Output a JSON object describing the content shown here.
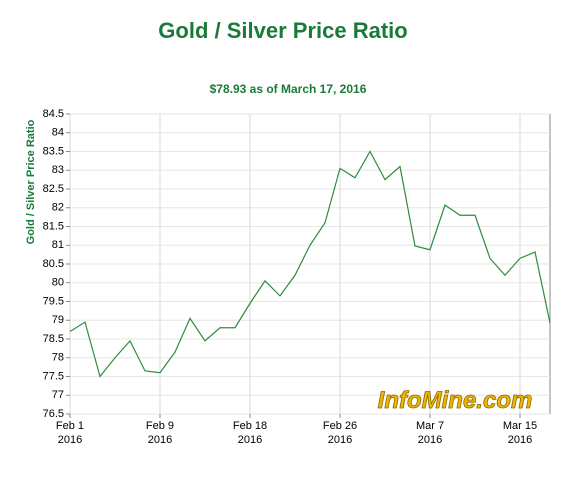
{
  "chart_data": {
    "type": "line",
    "title": "Gold / Silver Price Ratio",
    "subtitle": "$78.93 as of March 17, 2016",
    "y_label": "Gold / Silver Price Ratio",
    "watermark": "InfoMine.com",
    "categories": [
      [
        "Feb 1",
        "2016"
      ],
      null,
      null,
      null,
      null,
      null,
      [
        "Feb 9",
        "2016"
      ],
      null,
      null,
      null,
      null,
      null,
      [
        "Feb 18",
        "2016"
      ],
      null,
      null,
      null,
      null,
      null,
      [
        "Feb 26",
        "2016"
      ],
      null,
      null,
      null,
      null,
      null,
      [
        "Mar 7",
        "2016"
      ],
      null,
      null,
      null,
      null,
      null,
      [
        "Mar 15",
        "2016"
      ],
      null,
      null
    ],
    "series": [
      {
        "name": "Gold / Silver Price Ratio",
        "color": "#2e8b3e",
        "values": [
          78.7,
          78.95,
          77.5,
          78.0,
          78.45,
          77.65,
          77.6,
          78.15,
          79.05,
          78.45,
          78.8,
          78.8,
          79.45,
          80.05,
          79.65,
          80.2,
          81.0,
          81.6,
          83.05,
          82.8,
          83.5,
          82.75,
          83.1,
          80.98,
          80.88,
          82.07,
          81.8,
          81.8,
          80.65,
          80.2,
          80.65,
          80.82,
          78.93
        ]
      }
    ],
    "ylim": [
      76.5,
      84.5
    ],
    "yticks": [
      76.5,
      77,
      77.5,
      78,
      78.5,
      79,
      79.5,
      80,
      80.5,
      81,
      81.5,
      82,
      82.5,
      83,
      83.5,
      84,
      84.5
    ],
    "grid": true
  }
}
